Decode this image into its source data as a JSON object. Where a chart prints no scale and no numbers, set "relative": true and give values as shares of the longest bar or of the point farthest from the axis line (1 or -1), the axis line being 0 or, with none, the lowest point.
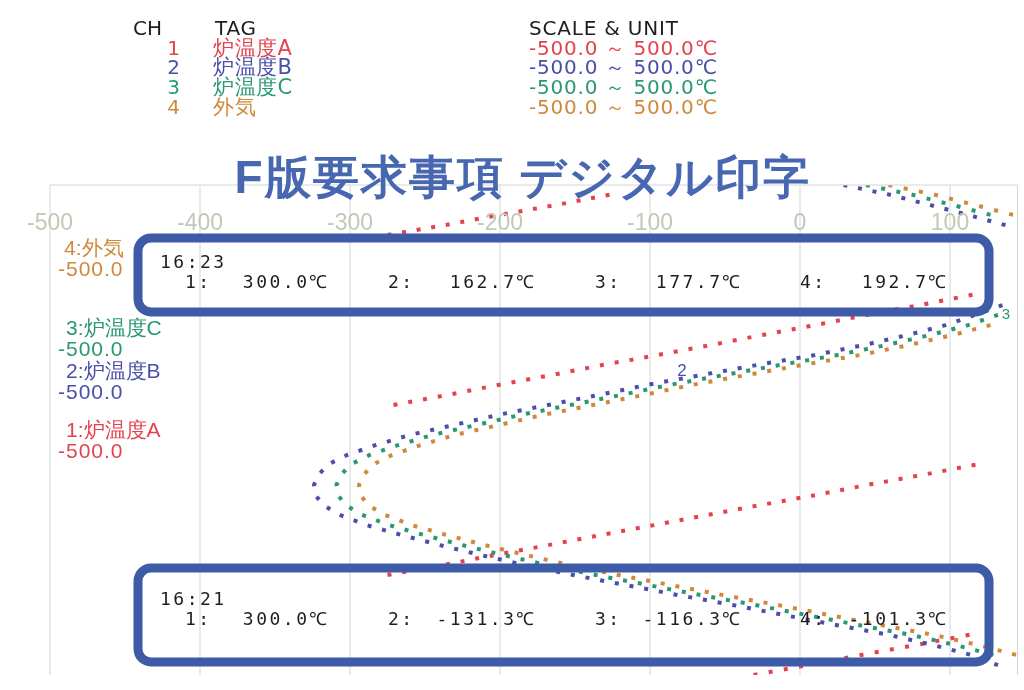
{
  "chart_data": {
    "type": "line",
    "title": "F版要求事項 デジタル印字",
    "relative": true,
    "series": [
      {
        "color": "#e3434f",
        "x": [
          -127,
          -163,
          -200,
          -237,
          -275
        ],
        "values": [
          0.98,
          0.959,
          0.939,
          0.918,
          0.898
        ]
      },
      {
        "color": "#e3434f",
        "x": [
          115,
          80,
          45,
          10,
          -25,
          -60,
          -95,
          -131,
          -166,
          -201,
          -236,
          -271
        ],
        "values": [
          0.776,
          0.755,
          0.735,
          0.714,
          0.694,
          0.673,
          0.653,
          0.633,
          0.612,
          0.592,
          0.571,
          0.551
        ]
      },
      {
        "color": "#e3434f",
        "x": [
          117,
          81,
          45,
          10,
          -26,
          -61,
          -97,
          -132,
          -168,
          -203,
          -239,
          -275
        ],
        "values": [
          0.429,
          0.408,
          0.388,
          0.367,
          0.347,
          0.327,
          0.306,
          0.286,
          0.265,
          0.245,
          0.224,
          0.204
        ]
      },
      {
        "color": "#e3434f",
        "x": [
          113,
          77,
          41,
          5,
          -31
        ],
        "values": [
          0.082,
          0.061,
          0.041,
          0.02,
          0
        ]
      },
      {
        "color": "#4a4fa8",
        "x": [
          29,
          60,
          87,
          112,
          137
        ],
        "values": [
          1,
          0.98,
          0.959,
          0.939,
          0.918
        ]
      },
      {
        "color": "#4a4fa8",
        "x": [
          135,
          117,
          97,
          72,
          42,
          10,
          -28,
          -66,
          -102,
          -135,
          -168,
          -201,
          -231,
          -260,
          -283,
          -302,
          -315,
          -321,
          -324,
          -323,
          -318,
          -307,
          -289,
          -266,
          -240,
          -213,
          -183,
          -151,
          -117,
          -81,
          -45,
          -10,
          24,
          59,
          89,
          114,
          132
        ],
        "values": [
          0.755,
          0.735,
          0.714,
          0.694,
          0.673,
          0.653,
          0.633,
          0.612,
          0.592,
          0.571,
          0.551,
          0.531,
          0.51,
          0.49,
          0.469,
          0.449,
          0.429,
          0.408,
          0.388,
          0.367,
          0.347,
          0.327,
          0.306,
          0.286,
          0.265,
          0.245,
          0.224,
          0.204,
          0.184,
          0.163,
          0.143,
          0.122,
          0.102,
          0.082,
          0.061,
          0.041,
          0.02
        ]
      },
      {
        "color": "#2a9872",
        "x": [
          44,
          75,
          102,
          127
        ],
        "values": [
          1,
          0.98,
          0.959,
          0.939
        ]
      },
      {
        "color": "#2a9872",
        "x": [
          132,
          112,
          87,
          57,
          25,
          -13,
          -51,
          -87,
          -120,
          -153,
          -186,
          -216,
          -245,
          -268,
          -287,
          -300,
          -306,
          -309,
          -308,
          -303,
          -292,
          -274,
          -251,
          -225,
          -198,
          -168,
          -136,
          -102,
          -66,
          -30,
          5,
          39,
          74,
          104,
          129
        ],
        "values": [
          0.735,
          0.714,
          0.694,
          0.673,
          0.653,
          0.633,
          0.612,
          0.592,
          0.571,
          0.551,
          0.531,
          0.51,
          0.49,
          0.469,
          0.449,
          0.429,
          0.408,
          0.388,
          0.367,
          0.347,
          0.327,
          0.306,
          0.286,
          0.265,
          0.245,
          0.224,
          0.204,
          0.184,
          0.163,
          0.143,
          0.122,
          0.102,
          0.082,
          0.061,
          0.041
        ]
      },
      {
        "color": "#cf893c",
        "x": [
          59,
          90,
          117,
          142
        ],
        "values": [
          1,
          0.98,
          0.959,
          0.939
        ]
      },
      {
        "color": "#cf893c",
        "x": [
          127,
          102,
          72,
          40,
          2,
          -36,
          -72,
          -105,
          -138,
          -171,
          -201,
          -230,
          -253,
          -272,
          -285,
          -291,
          -294,
          -293,
          -288,
          -277,
          -259,
          -236,
          -210,
          -183,
          -153,
          -121,
          -87,
          -51,
          -15,
          20,
          54,
          89,
          119,
          144
        ],
        "values": [
          0.714,
          0.694,
          0.673,
          0.653,
          0.633,
          0.612,
          0.592,
          0.571,
          0.551,
          0.531,
          0.51,
          0.49,
          0.469,
          0.449,
          0.429,
          0.408,
          0.388,
          0.367,
          0.347,
          0.327,
          0.306,
          0.286,
          0.265,
          0.245,
          0.224,
          0.204,
          0.184,
          0.163,
          0.143,
          0.122,
          0.102,
          0.082,
          0.061,
          0.041
        ]
      }
    ],
    "xlim": [
      -500,
      145
    ],
    "xticks": [
      -500,
      -400,
      -300,
      -200,
      -100,
      0,
      100
    ],
    "grid": "x",
    "line_style": "dotted",
    "marker": "none",
    "annotations": [
      "CH",
      "TAG",
      "SCALE & UNIT",
      "1",
      "炉温度A",
      "-500.0 ～ 500.0℃",
      "2",
      "炉温度B",
      "-500.0 ～ 500.0℃",
      "3",
      "炉温度C",
      "-500.0 ～ 500.0℃",
      "4",
      "外気",
      "-500.0 ～ 500.0℃",
      "4:外気",
      "-500.0",
      "3:炉温度C",
      "-500.0",
      "2:炉温度B",
      "-500.0",
      "1:炉温度A",
      "-500.0",
      "16:23",
      "1:",
      "300.0℃",
      "2:",
      "162.7℃",
      "3:",
      "177.7℃",
      "4:",
      "192.7℃",
      "16:21",
      "1:",
      "300.0℃",
      "2:",
      "-131.3℃",
      "3:",
      "-116.3℃",
      "4:",
      "-101.3℃",
      "2",
      "3"
    ]
  }
}
